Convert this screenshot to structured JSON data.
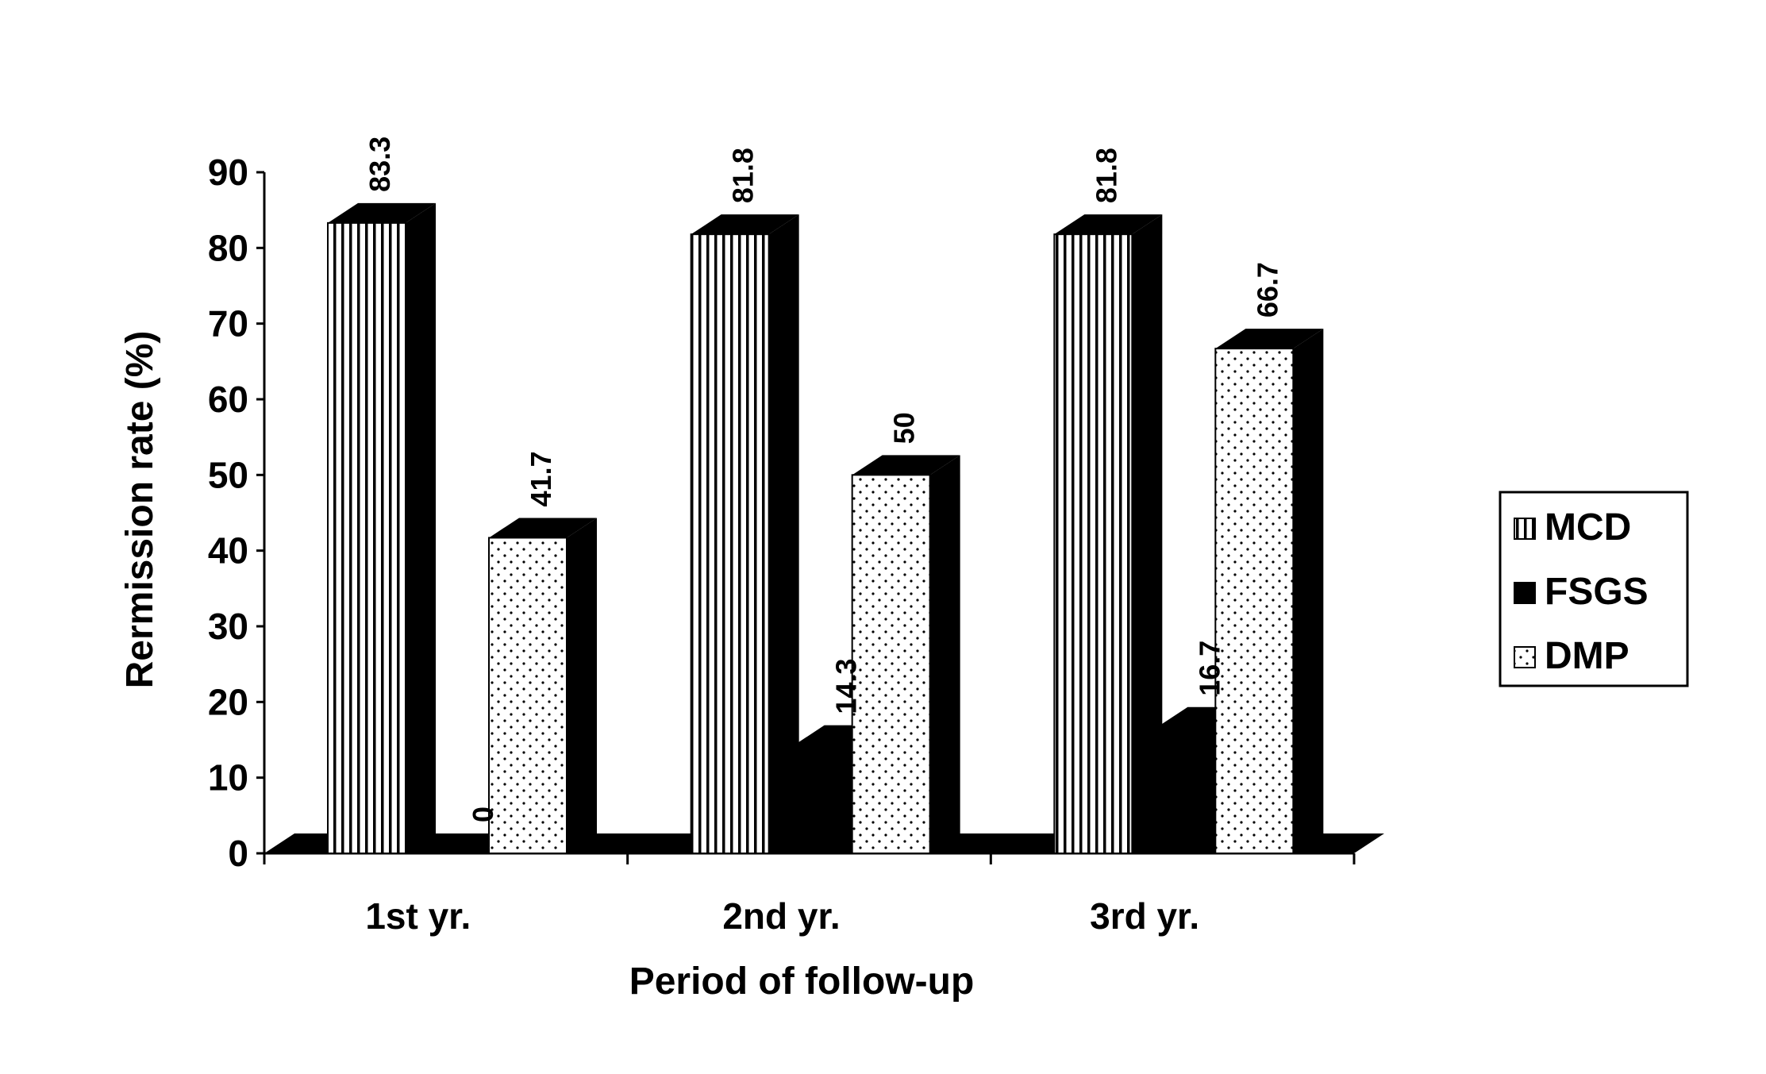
{
  "chart_data": {
    "type": "bar",
    "style": "3d-column",
    "title": "",
    "xlabel": "Period of follow-up",
    "ylabel": "Rermission rate (%)",
    "ylim": [
      0,
      90
    ],
    "yticks": [
      0,
      10,
      20,
      30,
      40,
      50,
      60,
      70,
      80,
      90
    ],
    "ytick_labels": [
      "0",
      "10",
      "20",
      "30",
      "40",
      "50",
      "60",
      "70",
      "80",
      "90"
    ],
    "categories": [
      "1st yr.",
      "2nd yr.",
      "3rd yr."
    ],
    "series": [
      {
        "name": "MCD",
        "values": [
          83.3,
          81.8,
          81.8
        ],
        "labels": [
          "83.3",
          "81.8",
          "81.8"
        ],
        "pattern": "vertical-stripes"
      },
      {
        "name": "FSGS",
        "values": [
          0,
          14.3,
          16.7
        ],
        "labels": [
          "0",
          "14.3",
          "16.7"
        ],
        "pattern": "solid-black"
      },
      {
        "name": "DMP",
        "values": [
          41.7,
          50,
          66.7
        ],
        "labels": [
          "41.7",
          "50",
          "66.7"
        ],
        "pattern": "dots"
      }
    ],
    "grid": false,
    "legend_position": "right",
    "data_labels": "rotated-vertical"
  }
}
